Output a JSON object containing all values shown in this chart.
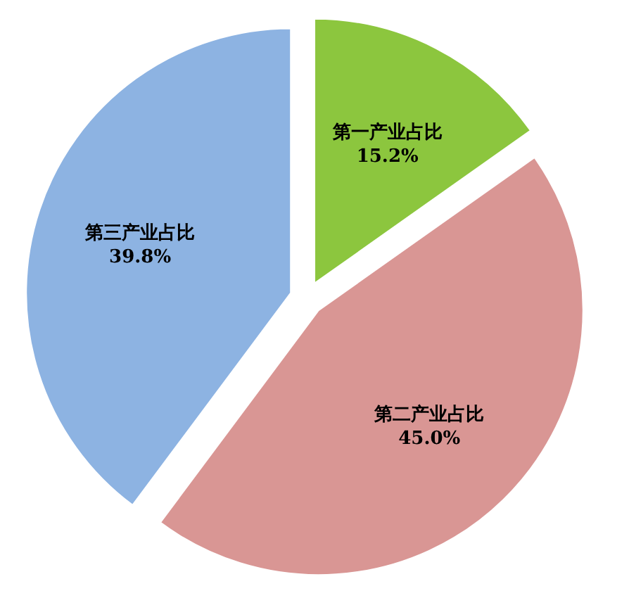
{
  "chart_data": {
    "type": "pie",
    "categories": [
      "第一产业占比",
      "第二产业占比",
      "第三产业占比"
    ],
    "values": [
      15.2,
      45.0,
      39.8
    ],
    "colors": [
      "#8cc63e",
      "#d99694",
      "#8db3e2"
    ],
    "value_labels": [
      "15.2%",
      "45.0%",
      "39.8%"
    ]
  }
}
